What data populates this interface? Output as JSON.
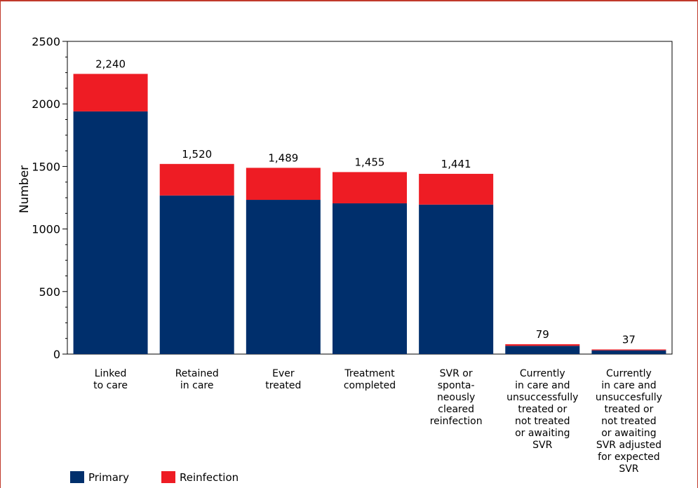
{
  "chart_data": {
    "type": "bar",
    "stacked": true,
    "title": "",
    "xlabel": "",
    "ylabel": "Number",
    "ylim": [
      0,
      2500
    ],
    "yticks": [
      0,
      500,
      1000,
      1500,
      2000,
      2500
    ],
    "grid": false,
    "legend_position": "bottom-left",
    "categories": [
      [
        "Linked",
        "to care"
      ],
      [
        "Retained",
        "in care"
      ],
      [
        "Ever",
        "treated"
      ],
      [
        "Treatment",
        "completed"
      ],
      [
        "SVR or",
        "sponta-",
        "neously",
        "cleared",
        "reinfection"
      ],
      [
        "Currently",
        "in care and",
        "unsuccessfully",
        "treated or",
        "not treated",
        "or awaiting",
        "SVR"
      ],
      [
        "Currently",
        "in care and",
        "unsuccesfully",
        "treated or",
        "not treated",
        "or awaiting",
        "SVR adjusted",
        "for expected",
        "SVR"
      ]
    ],
    "series": [
      {
        "name": "Primary",
        "color": "#002f6c",
        "values": [
          1940,
          1268,
          1233,
          1205,
          1195,
          66,
          30
        ]
      },
      {
        "name": "Reinfection",
        "color": "#ee1c24",
        "values": [
          300,
          252,
          256,
          250,
          246,
          13,
          7
        ]
      }
    ],
    "totals": [
      "2,240",
      "1,520",
      "1,489",
      "1,455",
      "1,441",
      "79",
      "37"
    ]
  }
}
